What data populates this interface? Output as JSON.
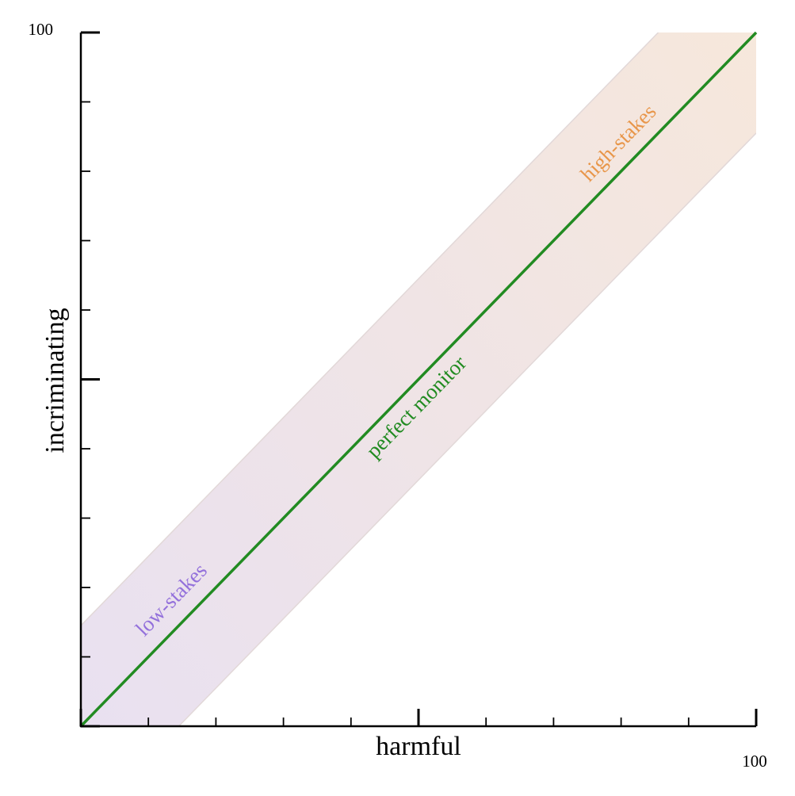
{
  "chart_data": {
    "type": "line",
    "x_label": "harmful",
    "y_label": "incriminating",
    "xlim": [
      0,
      100
    ],
    "ylim": [
      0,
      100
    ],
    "xticks": [
      {
        "value": 0,
        "label": null
      },
      {
        "value": 50,
        "label": null
      },
      100
    ],
    "yticks": [
      {
        "value": 0,
        "label": null
      },
      {
        "value": 50,
        "label": null
      },
      100
    ],
    "xminor_ticks": [
      10,
      20,
      30,
      40,
      60,
      70,
      80,
      90
    ],
    "yminor_ticks": [
      10,
      20,
      30,
      40,
      60,
      70,
      80,
      90
    ],
    "band": {
      "x": [
        0,
        100
      ],
      "lower": [
        -14.5,
        85.5
      ],
      "upper": [
        14.5,
        114.5
      ],
      "colors": [
        "#e8e0f2",
        "#f7e8da"
      ],
      "edge_color": "#e2d8d8"
    },
    "series": [
      {
        "name": "perfect monitor",
        "color": "#228b22",
        "x": [
          0,
          100
        ],
        "values": [
          0,
          100
        ]
      }
    ],
    "annotations": [
      {
        "text": "low-stakes",
        "color": "#9370db"
      },
      {
        "text": "high-stakes",
        "color": "#e8964a"
      }
    ]
  }
}
